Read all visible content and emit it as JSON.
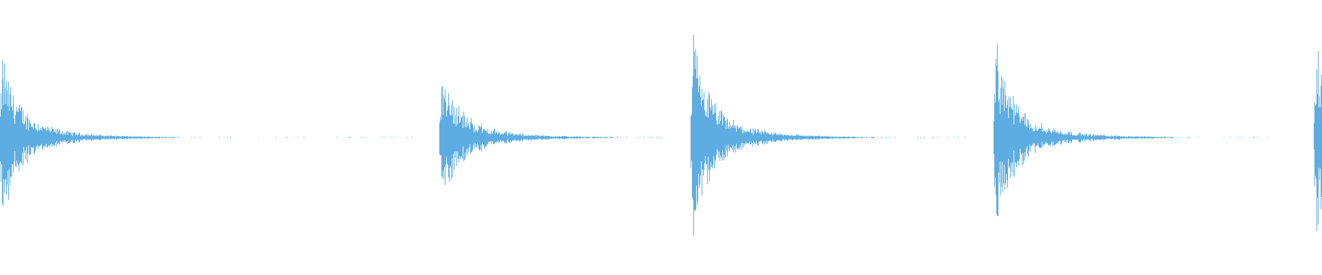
{
  "chart_data": {
    "type": "waveform",
    "title": "",
    "xlabel": "",
    "ylabel": "",
    "ylim": [
      -1,
      1
    ],
    "grid": false,
    "color": "#5DADE2",
    "hits": [
      {
        "peak_amplitude": 0.43
      },
      {
        "peak_amplitude": 0.39
      },
      {
        "peak_amplitude": 0.52
      },
      {
        "peak_amplitude": 0.51
      },
      {
        "peak_amplitude": 0.5
      }
    ]
  }
}
